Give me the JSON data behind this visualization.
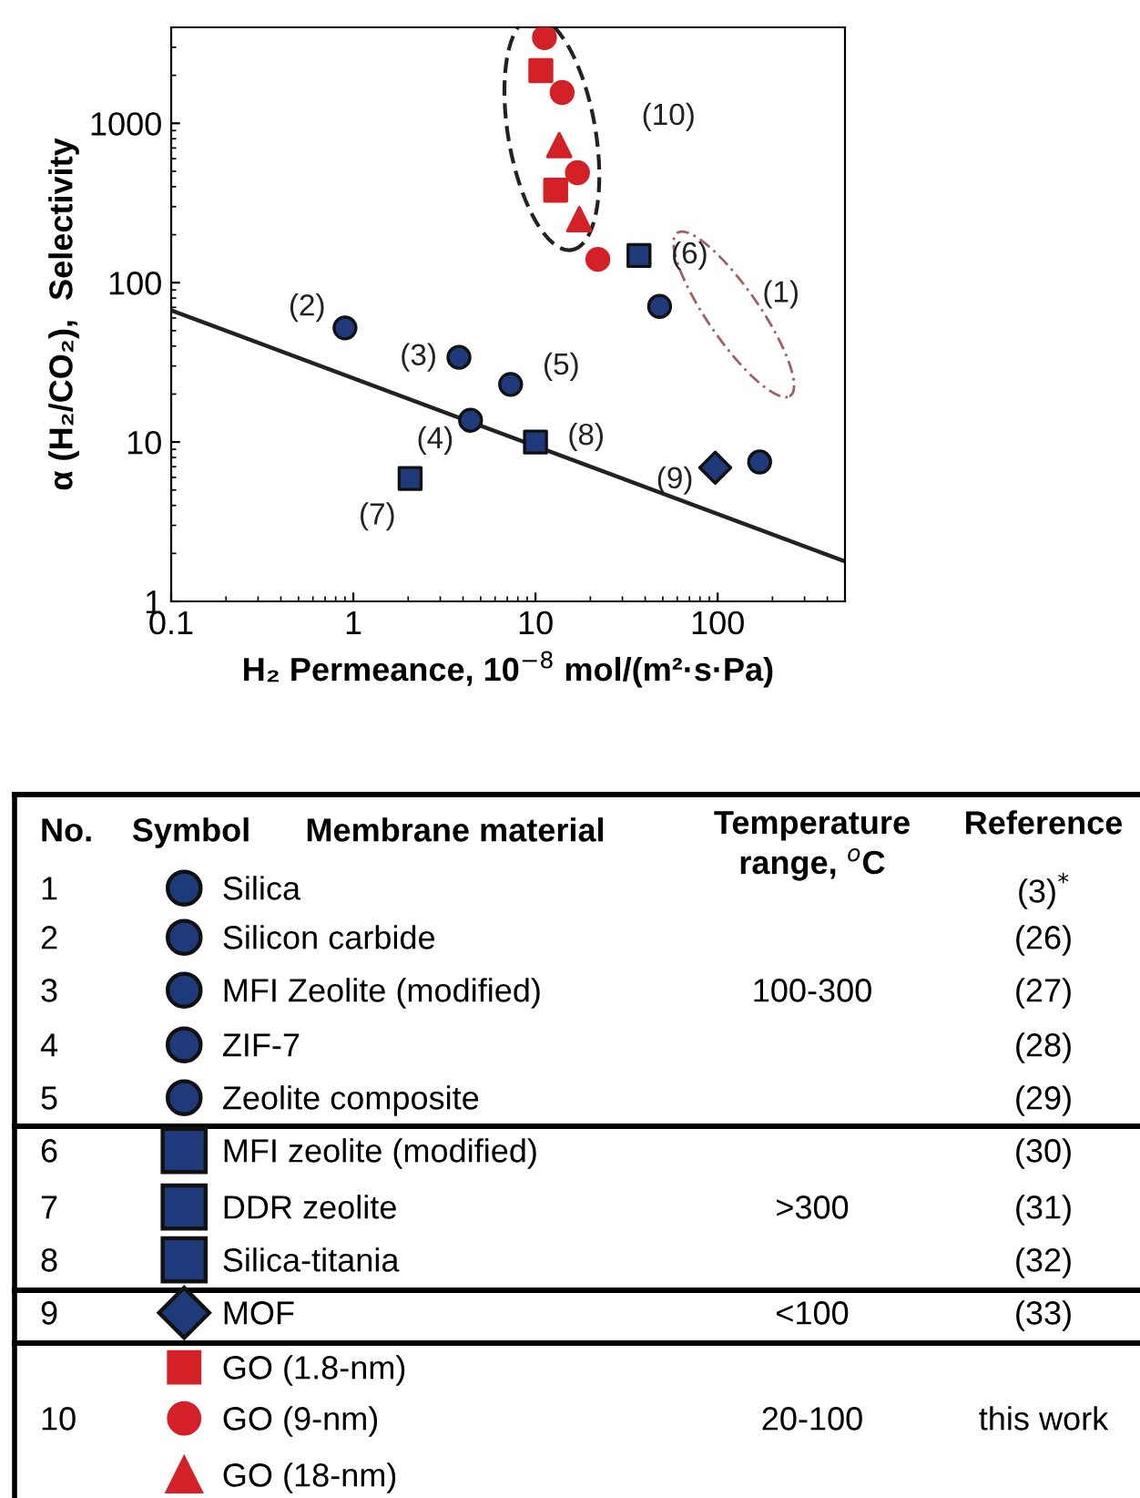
{
  "chart_data": {
    "type": "scatter",
    "xlabel": "H₂ Permeance, 10$^{−8}$ mol/(m²·s·Pa)",
    "ylabel": "α (H₂/CO₂),  Selectivity",
    "log": "xy",
    "xlim": [
      0.1,
      500
    ],
    "ylim": [
      1,
      4000
    ],
    "xticks": [
      0.1,
      1,
      10,
      100
    ],
    "yticks": [
      1,
      10,
      100,
      1000
    ],
    "grid": false,
    "legend": "bottom",
    "series": [
      {
        "name": "Silica",
        "color": "#1f3a7a",
        "marker": "circle",
        "x": [
          48,
          170
        ],
        "values": [
          71,
          7.5
        ]
      },
      {
        "name": "Silicon carbide",
        "color": "#1f3a7a",
        "marker": "circle",
        "x": [
          0.9
        ],
        "values": [
          52
        ]
      },
      {
        "name": "MFI Zeolite (modified)",
        "color": "#1f3a7a",
        "marker": "circle",
        "x": [
          3.8
        ],
        "values": [
          34
        ]
      },
      {
        "name": "ZIF-7",
        "color": "#1f3a7a",
        "marker": "circle",
        "x": [
          4.4
        ],
        "values": [
          13.7
        ]
      },
      {
        "name": "Zeolite composite",
        "color": "#1f3a7a",
        "marker": "circle",
        "x": [
          7.3
        ],
        "values": [
          23
        ]
      },
      {
        "name": "MFI zeolite (modified)",
        "color": "#1f3a7a",
        "marker": "square",
        "x": [
          37
        ],
        "values": [
          148
        ]
      },
      {
        "name": "DDR zeolite",
        "color": "#1f3a7a",
        "marker": "square",
        "x": [
          2.05
        ],
        "values": [
          5.9
        ]
      },
      {
        "name": "Silica-titania",
        "color": "#1f3a7a",
        "marker": "square",
        "x": [
          10
        ],
        "values": [
          10
        ]
      },
      {
        "name": "MOF",
        "color": "#1f3a7a",
        "marker": "diamond",
        "x": [
          97
        ],
        "values": [
          6.9
        ]
      },
      {
        "name": "GO (1.8-nm)",
        "color": "#d42027",
        "marker": "square",
        "x": [
          10.7,
          12.9
        ],
        "values": [
          2140,
          380
        ]
      },
      {
        "name": "GO (9-nm)",
        "color": "#d42027",
        "marker": "circle",
        "x": [
          11.2,
          14,
          17,
          22
        ],
        "values": [
          3450,
          1560,
          490,
          140
        ]
      },
      {
        "name": "GO (18-nm)",
        "color": "#d42027",
        "marker": "triangle",
        "x": [
          13.5,
          17.4
        ],
        "values": [
          730,
          250
        ]
      },
      {
        "type": "line",
        "color": "#222222",
        "marker": "none",
        "line_style": "solid",
        "x": [
          0.1,
          500
        ],
        "values": [
          67,
          1.78
        ]
      }
    ],
    "annotations": [
      "(1)",
      {
        "text": "(2)",
        "x": 0.9,
        "y": 52
      },
      {
        "text": "(3)",
        "x": 3.8,
        "y": 34
      },
      {
        "text": "(4)",
        "x": 4.4,
        "y": 13.7
      },
      {
        "text": "(5)",
        "x": 7.3,
        "y": 23
      },
      {
        "text": "(6)",
        "x": 37,
        "y": 148
      },
      {
        "text": "(7)",
        "x": 2.05,
        "y": 5.9
      },
      {
        "text": "(8)",
        "x": 10,
        "y": 10
      },
      {
        "text": "(9)",
        "x": 97,
        "y": 6.9
      },
      {
        "text": "(10)",
        "x": 17,
        "y": 490
      },
      "No.",
      "Symbol",
      "Membrane material",
      "Temperature\nrange, $^{o}$C",
      "Reference",
      "1",
      "2",
      "3",
      "4",
      "5",
      "6",
      "7",
      "8",
      "9",
      "10",
      "100-300",
      ">300",
      "<100",
      "20-100",
      "(3)$^{*}$",
      "(26)",
      "(27)",
      "(28)",
      "(29)",
      "(30)",
      "(31)",
      "(32)",
      "(33)",
      "this work"
    ]
  }
}
